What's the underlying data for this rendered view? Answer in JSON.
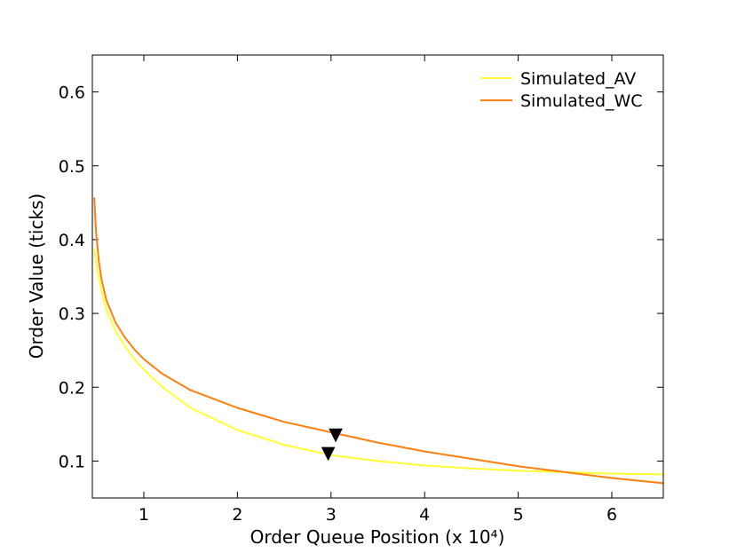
{
  "chart_data": {
    "type": "line",
    "xlabel": "Order Queue Position (x 10⁴)",
    "ylabel": "Order Value (ticks)",
    "xlim": [
      0.45,
      6.55
    ],
    "ylim": [
      0.05,
      0.65
    ],
    "x_ticks": [
      1,
      2,
      3,
      4,
      5,
      6
    ],
    "x_tick_labels": [
      "1",
      "2",
      "3",
      "4",
      "5",
      "6"
    ],
    "y_ticks": [
      0.1,
      0.2,
      0.3,
      0.4,
      0.5,
      0.6
    ],
    "y_tick_labels": [
      "0.1",
      "0.2",
      "0.3",
      "0.4",
      "0.5",
      "0.6"
    ],
    "legend": {
      "placement": "top-right"
    },
    "series": [
      {
        "name": "Simulated_AV",
        "color": "#ffff33",
        "x": [
          0.47,
          0.5,
          0.55,
          0.6,
          0.7,
          0.8,
          0.9,
          1.0,
          1.2,
          1.5,
          2.0,
          2.5,
          3.0,
          3.5,
          4.0,
          4.5,
          5.0,
          5.5,
          6.0,
          6.55
        ],
        "y": [
          0.388,
          0.36,
          0.33,
          0.305,
          0.275,
          0.255,
          0.238,
          0.224,
          0.2,
          0.172,
          0.142,
          0.122,
          0.108,
          0.1,
          0.094,
          0.09,
          0.087,
          0.085,
          0.083,
          0.082
        ]
      },
      {
        "name": "Simulated_WC",
        "color": "#ff7f0e",
        "x": [
          0.47,
          0.49,
          0.52,
          0.55,
          0.6,
          0.7,
          0.8,
          0.9,
          1.0,
          1.2,
          1.5,
          2.0,
          2.5,
          3.0,
          3.5,
          4.0,
          4.5,
          5.0,
          5.5,
          6.0,
          6.55
        ],
        "y": [
          0.457,
          0.41,
          0.37,
          0.345,
          0.318,
          0.287,
          0.267,
          0.251,
          0.238,
          0.218,
          0.196,
          0.172,
          0.153,
          0.139,
          0.125,
          0.113,
          0.103,
          0.093,
          0.085,
          0.077,
          0.07
        ]
      }
    ],
    "markers": [
      {
        "series": "Simulated_AV",
        "x": 2.97,
        "y": 0.11,
        "shape": "triangle-down",
        "color": "#000000"
      },
      {
        "series": "Simulated_WC",
        "x": 3.05,
        "y": 0.135,
        "shape": "triangle-down",
        "color": "#000000"
      }
    ]
  }
}
